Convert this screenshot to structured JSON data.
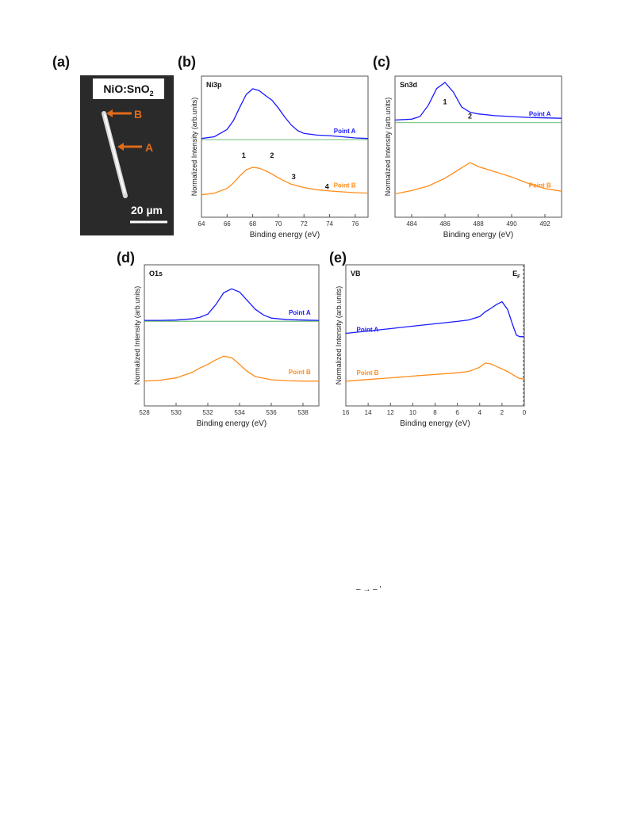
{
  "panels": {
    "a": {
      "label": "(a)",
      "title_main": "NiO:SnO",
      "title_sub": "2",
      "marker_b": "B",
      "marker_a": "A",
      "scale": "20 µm"
    },
    "b": {
      "label": "(b)",
      "tag": "Ni3p",
      "peaks": [
        "1",
        "2",
        "3",
        "4"
      ]
    },
    "c": {
      "label": "(c)",
      "tag": "Sn3d",
      "peaks": [
        "1",
        "2"
      ]
    },
    "d": {
      "label": "(d)",
      "tag": "O1s"
    },
    "e": {
      "label": "(e)",
      "tag": "VB",
      "ef_main": "E",
      "ef_sub": "F"
    }
  },
  "stray_marks": "–  →        –   ′",
  "chart_data": [
    {
      "id": "b",
      "type": "line",
      "title": "Ni3p",
      "xlabel": "Binding energy (eV)",
      "ylabel": "Normalized Intensity (arb.units)",
      "xlim": [
        64,
        77
      ],
      "xticks": [
        64,
        66,
        68,
        70,
        72,
        74,
        76
      ],
      "series": [
        {
          "name": "Point A",
          "color": "#1a1aff",
          "x": [
            64,
            65,
            66,
            66.5,
            67,
            67.5,
            68,
            68.5,
            69,
            69.5,
            70,
            70.5,
            71,
            71.5,
            72,
            73,
            74,
            75,
            76,
            77
          ],
          "y": [
            0.02,
            0.05,
            0.18,
            0.34,
            0.58,
            0.8,
            0.9,
            0.87,
            0.78,
            0.7,
            0.56,
            0.4,
            0.26,
            0.16,
            0.11,
            0.08,
            0.07,
            0.05,
            0.03,
            0.02
          ]
        },
        {
          "name": "Point B",
          "color": "#ff8c1a",
          "x": [
            64,
            65,
            66,
            66.5,
            67,
            67.5,
            68,
            68.5,
            69,
            69.5,
            70,
            70.5,
            71,
            72,
            73,
            74,
            75,
            76,
            77
          ],
          "y": [
            0.03,
            0.07,
            0.18,
            0.31,
            0.48,
            0.62,
            0.68,
            0.66,
            0.6,
            0.52,
            0.43,
            0.35,
            0.28,
            0.2,
            0.15,
            0.12,
            0.1,
            0.08,
            0.07
          ]
        }
      ]
    },
    {
      "id": "c",
      "type": "line",
      "title": "Sn3d",
      "xlabel": "Binding energy (eV)",
      "ylabel": "Normalized Intensity (arb.units)",
      "xlim": [
        483,
        493
      ],
      "xticks": [
        484,
        486,
        488,
        490,
        492
      ],
      "series": [
        {
          "name": "Point A",
          "color": "#1a1aff",
          "x": [
            483,
            484,
            484.5,
            485,
            485.5,
            486,
            486.5,
            487,
            487.5,
            488,
            489,
            490,
            491,
            492,
            493
          ],
          "y": [
            0.06,
            0.08,
            0.14,
            0.4,
            0.78,
            0.92,
            0.7,
            0.36,
            0.24,
            0.2,
            0.16,
            0.14,
            0.12,
            0.11,
            0.1
          ]
        },
        {
          "name": "Point B",
          "color": "#ff8c1a",
          "x": [
            483,
            484,
            485,
            486,
            486.5,
            487,
            487.5,
            488,
            489,
            490,
            491,
            492,
            493
          ],
          "y": [
            0.1,
            0.15,
            0.22,
            0.34,
            0.42,
            0.5,
            0.58,
            0.52,
            0.44,
            0.36,
            0.26,
            0.18,
            0.14
          ]
        }
      ]
    },
    {
      "id": "d",
      "type": "line",
      "title": "O1s",
      "xlabel": "Binding energy (eV)",
      "ylabel": "Normalized Intensity (arb.units)",
      "xlim": [
        528,
        539
      ],
      "xticks": [
        528,
        530,
        532,
        534,
        536,
        538
      ],
      "series": [
        {
          "name": "Point A",
          "color": "#1a1aff",
          "x": [
            528,
            529,
            530,
            531,
            531.5,
            532,
            532.5,
            533,
            533.5,
            534,
            534.5,
            535,
            535.5,
            536,
            537,
            538,
            539
          ],
          "y": [
            0.02,
            0.02,
            0.03,
            0.06,
            0.1,
            0.18,
            0.42,
            0.72,
            0.82,
            0.74,
            0.52,
            0.3,
            0.16,
            0.08,
            0.04,
            0.03,
            0.02
          ]
        },
        {
          "name": "Point B",
          "color": "#ff8c1a",
          "x": [
            528,
            529,
            530,
            531,
            531.5,
            532,
            532.5,
            533,
            533.5,
            534,
            534.5,
            535,
            536,
            537,
            538,
            539
          ],
          "y": [
            0.05,
            0.07,
            0.12,
            0.24,
            0.34,
            0.42,
            0.52,
            0.6,
            0.57,
            0.42,
            0.26,
            0.15,
            0.08,
            0.06,
            0.05,
            0.05
          ]
        }
      ]
    },
    {
      "id": "e",
      "type": "line",
      "title": "VB",
      "xlabel": "Binding energy (eV)",
      "ylabel": "Normalized Intensity (arb.units)",
      "xlim": [
        16,
        0
      ],
      "xticks": [
        16,
        14,
        12,
        10,
        8,
        6,
        4,
        2,
        0
      ],
      "series": [
        {
          "name": "Point A",
          "color": "#1a1aff",
          "x": [
            16,
            14,
            12,
            10,
            8,
            6,
            5,
            4,
            3.5,
            3,
            2.5,
            2,
            1.5,
            1,
            0.7,
            0.4,
            0
          ],
          "y": [
            0.1,
            0.15,
            0.2,
            0.25,
            0.3,
            0.35,
            0.38,
            0.45,
            0.55,
            0.62,
            0.7,
            0.76,
            0.6,
            0.25,
            0.06,
            0.03,
            0.03
          ]
        },
        {
          "name": "Point B",
          "color": "#ff8c1a",
          "x": [
            16,
            14,
            12,
            10,
            8,
            6,
            5,
            4,
            3.5,
            3,
            2.5,
            2,
            1.5,
            1,
            0.5,
            0
          ],
          "y": [
            0.05,
            0.09,
            0.13,
            0.17,
            0.21,
            0.25,
            0.28,
            0.38,
            0.48,
            0.46,
            0.4,
            0.34,
            0.28,
            0.2,
            0.12,
            0.1
          ]
        }
      ]
    }
  ]
}
